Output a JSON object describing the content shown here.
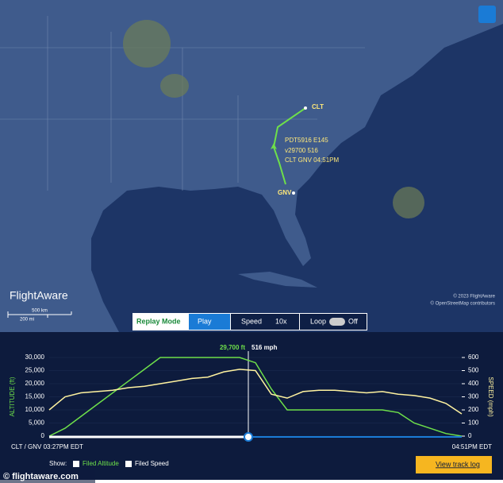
{
  "map": {
    "airports": [
      "CLT",
      "GNV"
    ],
    "flight_info": [
      "PDT5916 E145",
      "v29700 516",
      "CLT GNV 04:51PM"
    ],
    "logo": "FlightAware",
    "scale_km": "500 km",
    "scale_mi": "200 mi",
    "copyright": "© 2023 FlightAware",
    "osm": "© OpenStreetMap contributors"
  },
  "replay": {
    "mode": "Replay Mode",
    "play": "Play",
    "speed": "Speed",
    "speed_value": "10x",
    "loop": "Loop",
    "loop_value": "Off"
  },
  "chart_data": {
    "type": "line",
    "y_label": "ALTITUDE (ft)",
    "y2_label": "SPEED (mph)",
    "cursor_labels": [
      "29,700 ft",
      "516 mph"
    ],
    "start_label": "CLT / GNV 03:27PM EDT",
    "end_label": "04:51PM EDT",
    "ylim": [
      0,
      30000
    ],
    "yticks": [
      0,
      {
        "value": 5000,
        "label": "5,000"
      },
      {
        "value": 10000,
        "label": "10,000"
      },
      {
        "value": 15000,
        "label": "15,000"
      },
      {
        "value": 20000,
        "label": "20,000"
      },
      {
        "value": 25000,
        "label": "25,000"
      },
      {
        "value": 30000,
        "label": "30,000"
      }
    ],
    "y2lim": [
      0,
      600
    ],
    "y2ticks": [
      0,
      100,
      200,
      300,
      400,
      500,
      600
    ],
    "series": [
      {
        "name": "Filed Altitude",
        "color": "#6ee04a",
        "values": [
          0,
          3000,
          7500,
          12000,
          16500,
          21000,
          25500,
          30000,
          30000,
          30000,
          30000,
          30000,
          30000,
          28000,
          18000,
          10000,
          10000,
          10000,
          10000,
          10000,
          10000,
          10000,
          9000,
          5000,
          3000,
          1000,
          0
        ]
      },
      {
        "name": "Filed Speed",
        "color": "#fff3a0",
        "axis": "y2",
        "values": [
          200,
          300,
          330,
          340,
          350,
          370,
          380,
          400,
          420,
          440,
          450,
          490,
          510,
          500,
          320,
          290,
          340,
          350,
          350,
          340,
          330,
          340,
          320,
          310,
          290,
          250,
          170
        ]
      }
    ]
  },
  "controls": {
    "show": "Show:",
    "track_log": "View track log"
  },
  "footer": "© flightaware.com"
}
